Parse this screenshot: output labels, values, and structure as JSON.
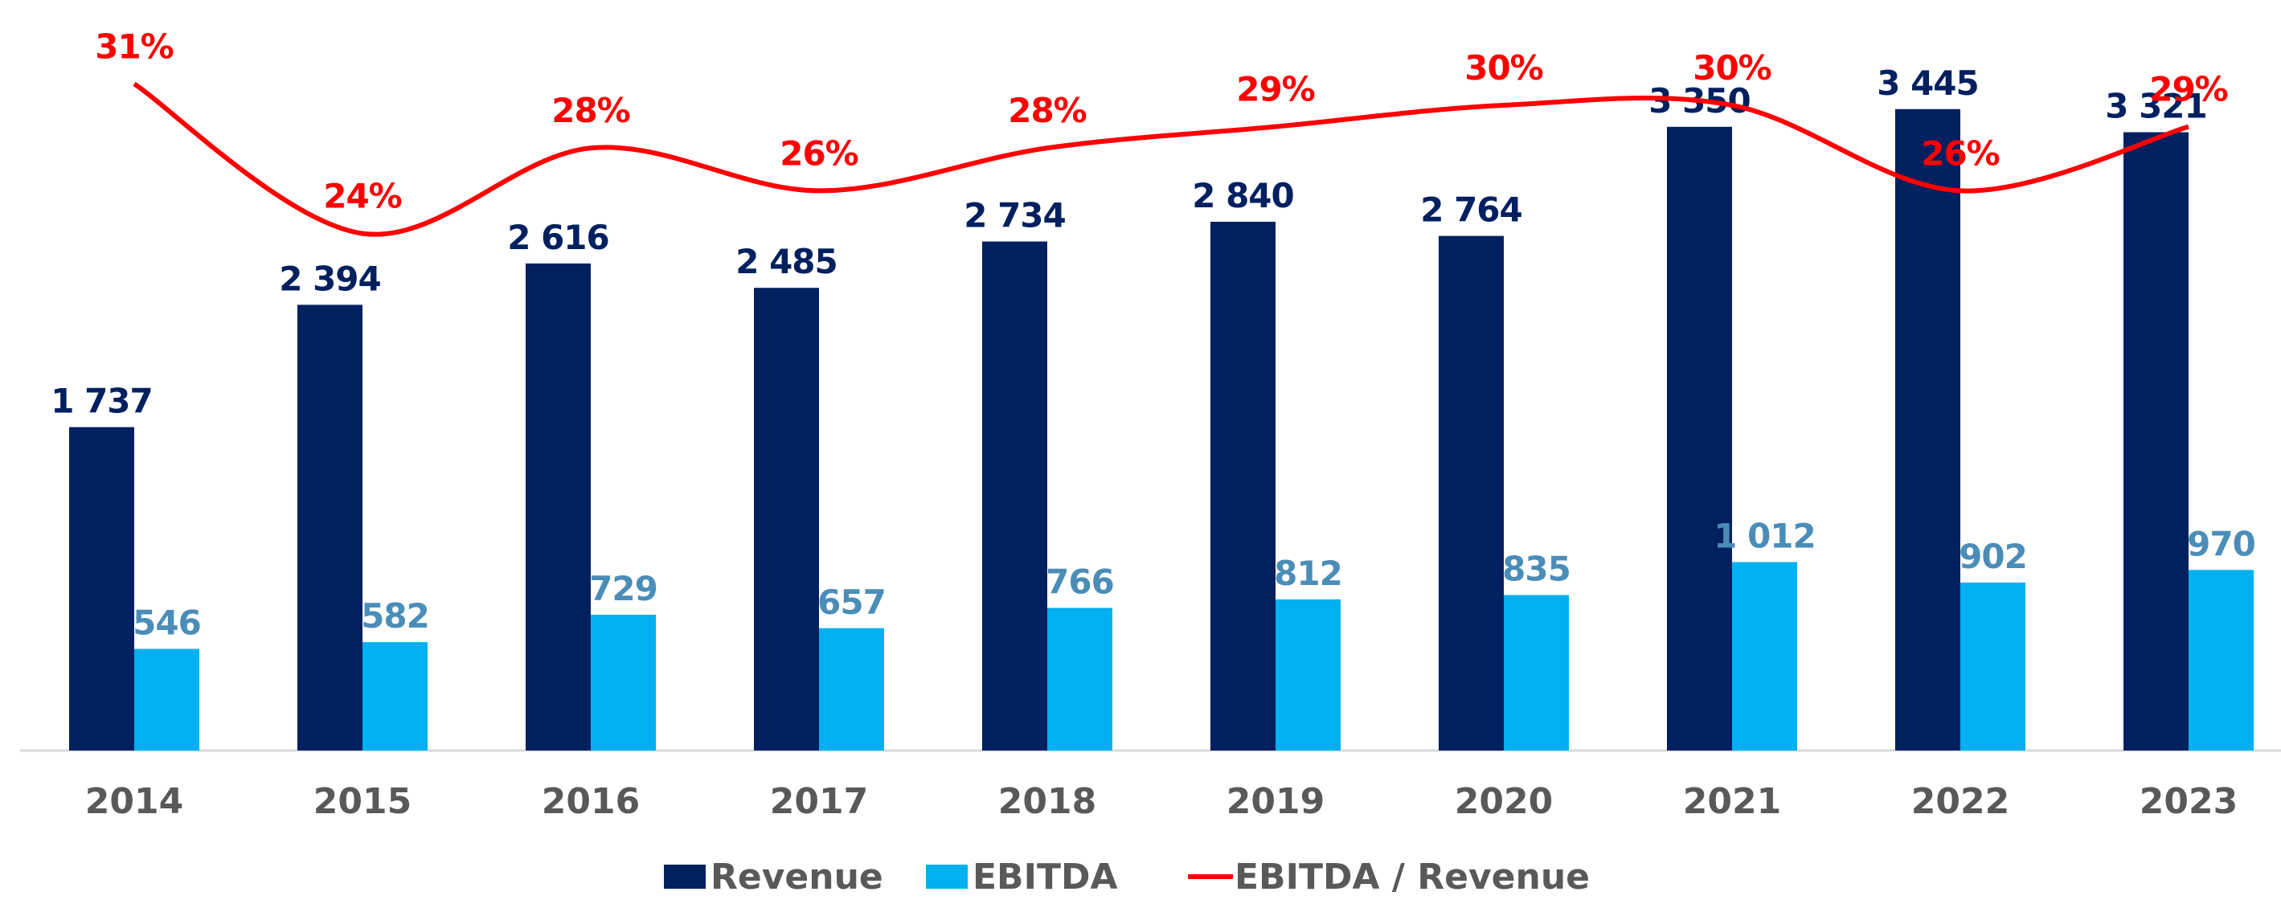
{
  "chart_data": {
    "type": "bar",
    "categories": [
      "2014",
      "2015",
      "2016",
      "2017",
      "2018",
      "2019",
      "2020",
      "2021",
      "2022",
      "2023"
    ],
    "series": [
      {
        "name": "Revenue",
        "color": "#002060",
        "label_color": "#002060",
        "values": [
          1737,
          2394,
          2616,
          2485,
          2734,
          2840,
          2764,
          3350,
          3445,
          3321
        ],
        "value_labels": [
          "1 737",
          "2 394",
          "2 616",
          "2 485",
          "2 734",
          "2 840",
          "2 764",
          "3 350",
          "3 445",
          "3 321"
        ]
      },
      {
        "name": "EBITDA",
        "color": "#00b0f0",
        "label_color": "#4a8db8",
        "values": [
          546,
          582,
          729,
          657,
          766,
          812,
          835,
          1012,
          902,
          970
        ],
        "value_labels": [
          "546",
          "582",
          "729",
          "657",
          "766",
          "812",
          "835",
          "1 012",
          "902",
          "970"
        ]
      },
      {
        "name": "EBITDA / Revenue",
        "type": "line",
        "color": "#ff0000",
        "label_color": "#ff0000",
        "values": [
          31,
          24,
          28,
          26,
          28,
          29,
          30,
          30,
          26,
          29
        ],
        "value_labels": [
          "31%",
          "24%",
          "28%",
          "26%",
          "28%",
          "29%",
          "30%",
          "30%",
          "26%",
          "29%"
        ]
      }
    ]
  }
}
